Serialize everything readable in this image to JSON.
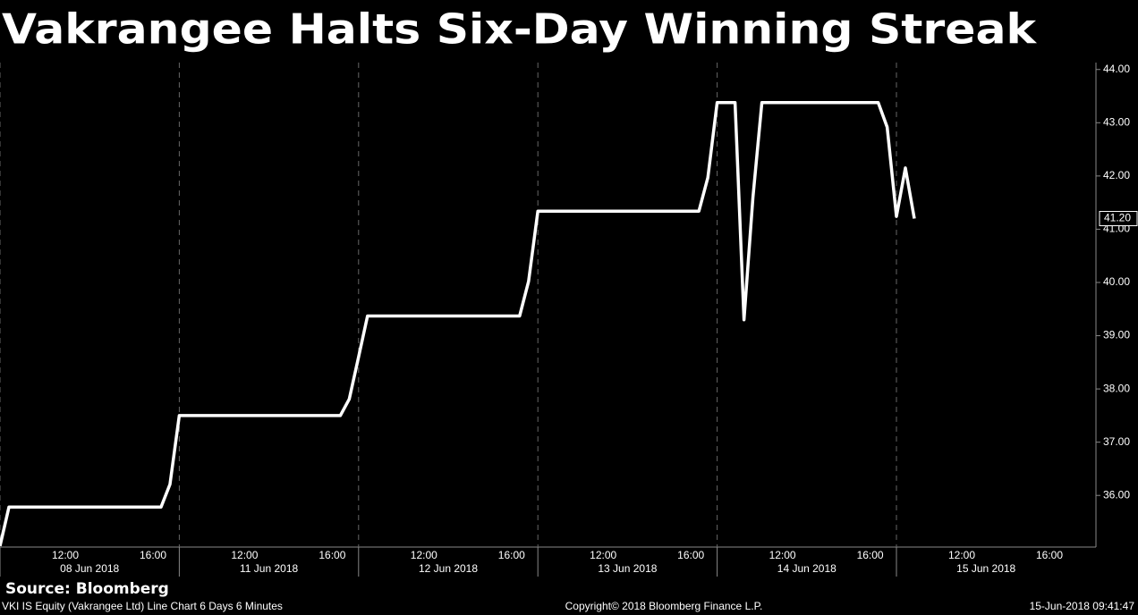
{
  "chart_data": {
    "type": "line",
    "title": "Vakrangee Halts Six-Day Winning Streak",
    "source": "Source: Bloomberg",
    "footer": {
      "left": "VKI IS Equity (Vakrangee Ltd) Line Chart 6 Days 6 Minutes",
      "center": "Copyright© 2018 Bloomberg Finance L.P.",
      "right": "15-Jun-2018 09:41:47"
    },
    "color": "#ffffff",
    "time_ticks": [
      "12:00",
      "16:00"
    ],
    "days": [
      {
        "label": "08 Jun 2018",
        "values": [
          35.05,
          35.78,
          35.78,
          35.78,
          35.78,
          35.78,
          35.78,
          35.78,
          35.78,
          35.78,
          35.78,
          35.78,
          35.78,
          35.78,
          35.78,
          35.78,
          35.78,
          35.78,
          35.78,
          36.21
        ]
      },
      {
        "label": "11 Jun 2018",
        "values": [
          37.5,
          37.5,
          37.5,
          37.5,
          37.5,
          37.5,
          37.5,
          37.5,
          37.5,
          37.5,
          37.5,
          37.5,
          37.5,
          37.5,
          37.5,
          37.5,
          37.5,
          37.5,
          37.5,
          37.81
        ]
      },
      {
        "label": "12 Jun 2018",
        "values": [
          38.6,
          39.37,
          39.37,
          39.37,
          39.37,
          39.37,
          39.37,
          39.37,
          39.37,
          39.37,
          39.37,
          39.37,
          39.37,
          39.37,
          39.37,
          39.37,
          39.37,
          39.37,
          39.37,
          40.02
        ]
      },
      {
        "label": "13 Jun 2018",
        "values": [
          41.34,
          41.34,
          41.34,
          41.34,
          41.34,
          41.34,
          41.34,
          41.34,
          41.34,
          41.34,
          41.34,
          41.34,
          41.34,
          41.34,
          41.34,
          41.34,
          41.34,
          41.34,
          41.34,
          41.97
        ]
      },
      {
        "label": "14 Jun 2018",
        "values": [
          43.38,
          43.38,
          43.38,
          39.3,
          41.6,
          43.38,
          43.38,
          43.38,
          43.38,
          43.38,
          43.38,
          43.38,
          43.38,
          43.38,
          43.38,
          43.38,
          43.38,
          43.38,
          43.38,
          42.92
        ]
      },
      {
        "label": "15 Jun 2018",
        "values": [
          41.24,
          42.15,
          41.2
        ]
      }
    ],
    "last_price": {
      "value": 41.2,
      "label": "41.20"
    },
    "ylim": [
      35.03,
      44.13
    ],
    "yticks": [
      {
        "value": 36,
        "label": "36.00"
      },
      {
        "value": 37,
        "label": "37.00"
      },
      {
        "value": 38,
        "label": "38.00"
      },
      {
        "value": 39,
        "label": "39.00"
      },
      {
        "value": 40,
        "label": "40.00"
      },
      {
        "value": 41,
        "label": "41.00"
      },
      {
        "value": 42,
        "label": "42.00"
      },
      {
        "value": 43,
        "label": "43.00"
      },
      {
        "value": 44,
        "label": "44.00"
      }
    ]
  }
}
